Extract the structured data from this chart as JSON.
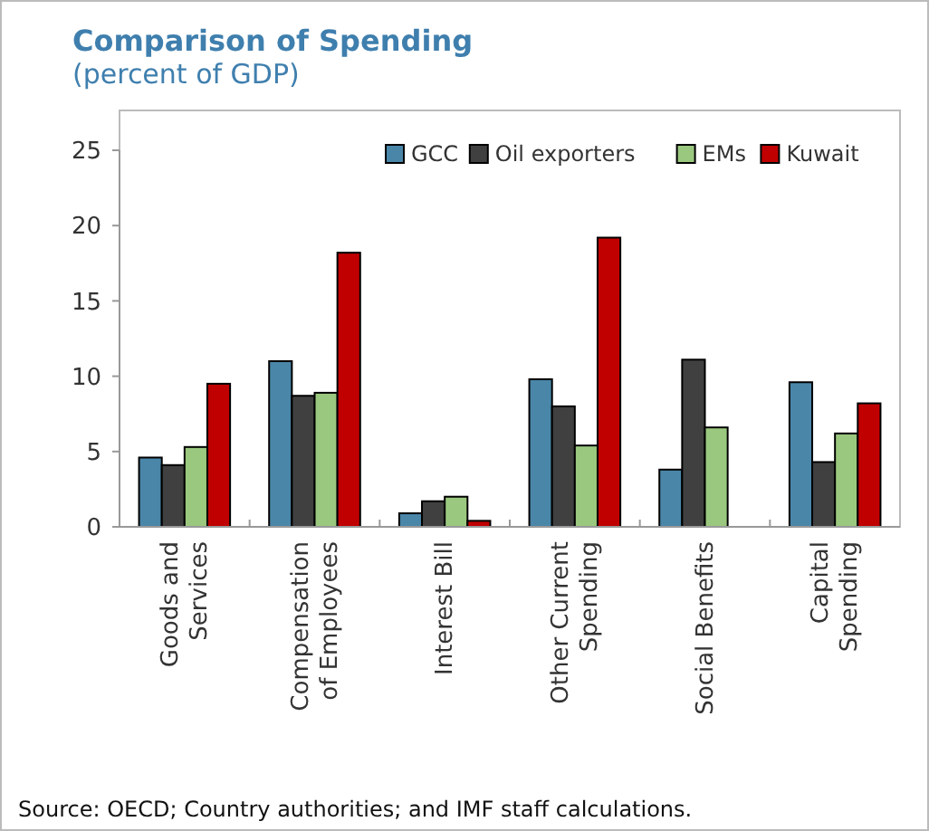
{
  "chart_data": {
    "type": "bar",
    "title": "Comparison of Spending",
    "subtitle": "(percent of GDP)",
    "categories": [
      "Goods and\nServices",
      "Compensation\nof Employees",
      "Interest Bill",
      "Other Current\nSpending",
      "Social Benefits",
      "Capital\nSpending"
    ],
    "series": [
      {
        "name": "GCC",
        "color": "#4a86a8",
        "values": [
          4.6,
          11.0,
          0.9,
          9.8,
          3.8,
          9.6
        ]
      },
      {
        "name": "Oil exporters",
        "color": "#404040",
        "values": [
          4.1,
          8.7,
          1.7,
          8.0,
          11.1,
          4.3
        ]
      },
      {
        "name": "EMs",
        "color": "#9bc87f",
        "values": [
          5.3,
          8.9,
          2.0,
          5.4,
          6.6,
          6.2
        ]
      },
      {
        "name": "Kuwait",
        "color": "#c00000",
        "values": [
          9.5,
          18.2,
          0.4,
          19.2,
          null,
          8.2
        ]
      }
    ],
    "ylim": [
      0,
      25
    ],
    "yticks": [
      0,
      5,
      10,
      15,
      20,
      25
    ],
    "grid": false,
    "legend": "top right",
    "annotations": [
      "Source: OECD; Country authorities; and IMF staff calculations."
    ]
  }
}
